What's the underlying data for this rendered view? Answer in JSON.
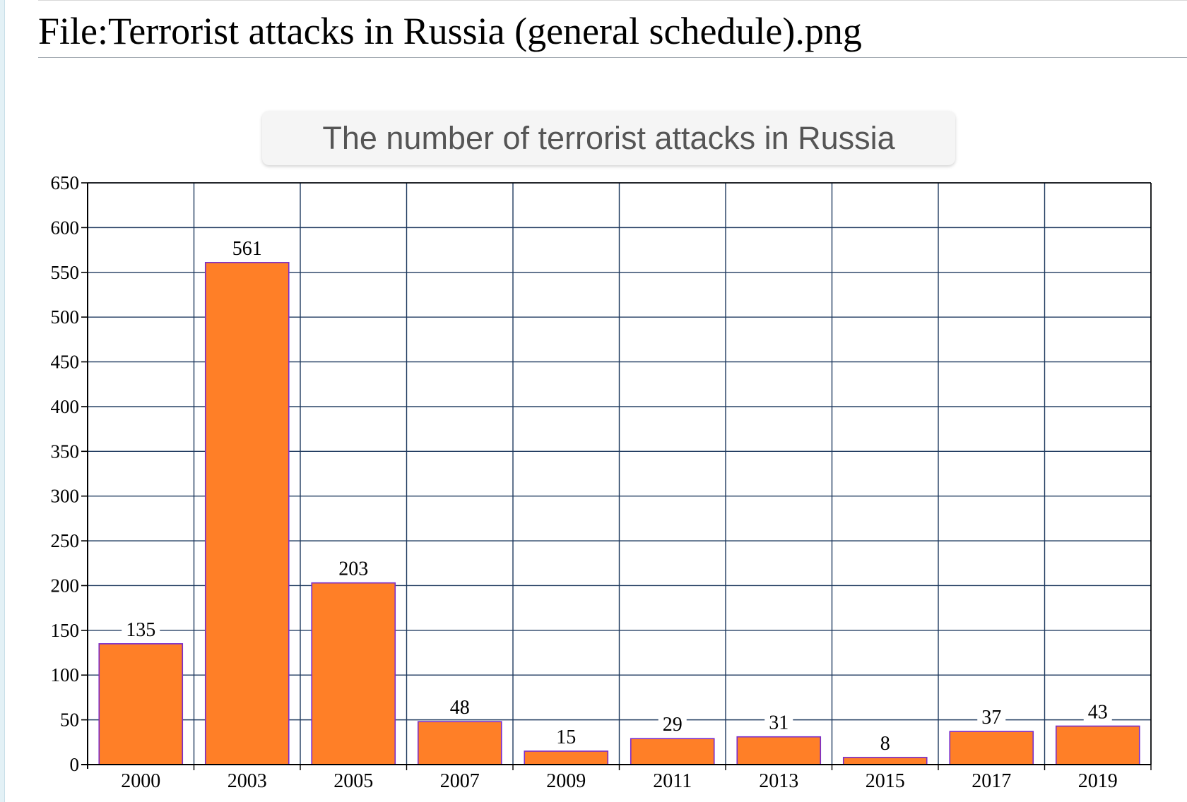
{
  "page": {
    "title": "File:Terrorist attacks in Russia (general schedule).png"
  },
  "chart_data": {
    "type": "bar",
    "title": "The number of terrorist attacks in Russia",
    "xlabel": "",
    "ylabel": "",
    "categories": [
      "2000",
      "2003",
      "2005",
      "2007",
      "2009",
      "2011",
      "2013",
      "2015",
      "2017",
      "2019"
    ],
    "values": [
      135,
      561,
      203,
      48,
      15,
      29,
      31,
      8,
      37,
      43
    ],
    "data_labels": [
      "135",
      "561",
      "203",
      "48",
      "15",
      "29",
      "31",
      "8",
      "37",
      "43"
    ],
    "ylim": [
      0,
      650
    ],
    "yticks": [
      "0",
      "50",
      "100",
      "150",
      "200",
      "250",
      "300",
      "350",
      "400",
      "450",
      "500",
      "550",
      "600",
      "650"
    ],
    "grid": true,
    "legend": "none",
    "colors": {
      "bar_fill": "#ff7f27",
      "bar_stroke": "#7a2cc9",
      "grid": "#1f3a5f",
      "axis": "#000000"
    }
  }
}
